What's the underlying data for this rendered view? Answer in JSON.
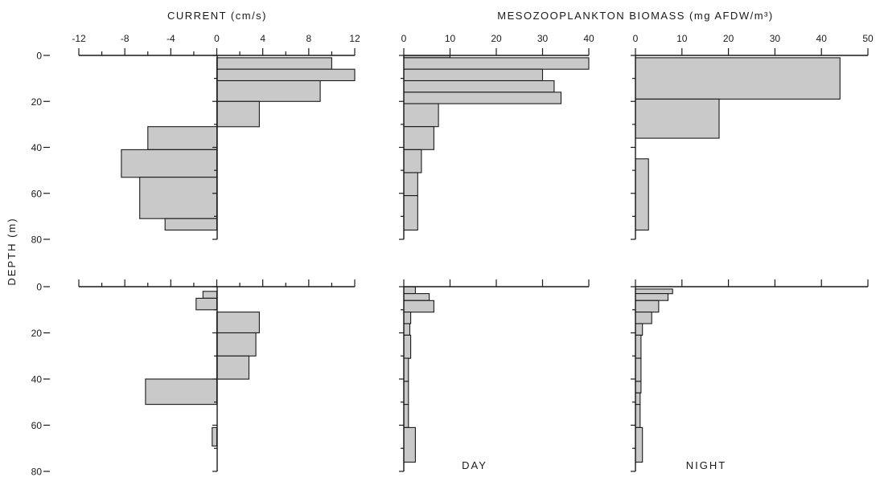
{
  "figure": {
    "header_current": "CURRENT (cm/s)",
    "header_biomass": "MESOZOOPLANKTON BIOMASS (mg AFDW/m³)",
    "y_axis_label": "DEPTH (m)",
    "label_day": "DAY",
    "label_night": "NIGHT"
  },
  "chart_data": [
    {
      "type": "bar",
      "orientation": "horizontal",
      "xlabel": "CURRENT (cm/s)",
      "ylabel": "DEPTH (m)",
      "xlim": [
        -12,
        12
      ],
      "xticks": [
        -12,
        -8,
        -4,
        0,
        4,
        8,
        12
      ],
      "ylim": [
        0,
        80
      ],
      "yticks": [
        0,
        20,
        40,
        60,
        80
      ],
      "bars": [
        {
          "depth": [
            1,
            6
          ],
          "value": 10
        },
        {
          "depth": [
            6,
            11
          ],
          "value": 12
        },
        {
          "depth": [
            11,
            20
          ],
          "value": 9
        },
        {
          "depth": [
            20,
            31
          ],
          "value": 3.7
        },
        {
          "depth": [
            31,
            41
          ],
          "value": -6
        },
        {
          "depth": [
            41,
            53
          ],
          "value": -8.3
        },
        {
          "depth": [
            53,
            71
          ],
          "value": -6.7
        },
        {
          "depth": [
            71,
            76
          ],
          "value": -4.5
        }
      ]
    },
    {
      "type": "bar",
      "orientation": "horizontal",
      "xlabel": "MESOZOOPLANKTON BIOMASS (mg AFDW/m³)",
      "ylabel": "DEPTH (m)",
      "xlim": [
        0,
        40
      ],
      "xticks": [
        0,
        10,
        20,
        30,
        40
      ],
      "ylim": [
        0,
        80
      ],
      "yticks": [
        0,
        20,
        40,
        60,
        80
      ],
      "bars": [
        {
          "depth": [
            0,
            1
          ],
          "value": 10
        },
        {
          "depth": [
            1,
            6
          ],
          "value": 40
        },
        {
          "depth": [
            6,
            11
          ],
          "value": 30
        },
        {
          "depth": [
            11,
            16
          ],
          "value": 32.5
        },
        {
          "depth": [
            16,
            21
          ],
          "value": 34
        },
        {
          "depth": [
            21,
            31
          ],
          "value": 7.5
        },
        {
          "depth": [
            31,
            41
          ],
          "value": 6.5
        },
        {
          "depth": [
            41,
            51
          ],
          "value": 3.8
        },
        {
          "depth": [
            51,
            61
          ],
          "value": 3
        },
        {
          "depth": [
            61,
            76
          ],
          "value": 3
        }
      ]
    },
    {
      "type": "bar",
      "orientation": "horizontal",
      "xlabel": "MESOZOOPLANKTON BIOMASS (mg AFDW/m³)",
      "ylabel": "DEPTH (m)",
      "xlim": [
        0,
        50
      ],
      "xticks": [
        0,
        10,
        20,
        30,
        40,
        50
      ],
      "ylim": [
        0,
        80
      ],
      "yticks": [
        0,
        20,
        40,
        60,
        80
      ],
      "bars": [
        {
          "depth": [
            1,
            19
          ],
          "value": 44
        },
        {
          "depth": [
            19,
            36
          ],
          "value": 18
        },
        {
          "depth": [
            45,
            76
          ],
          "value": 2.8
        }
      ]
    },
    {
      "type": "bar",
      "orientation": "horizontal",
      "xlabel": "CURRENT (cm/s)",
      "ylabel": "DEPTH (m)",
      "xlim": [
        -12,
        12
      ],
      "xticks": [
        -12,
        -8,
        -4,
        0,
        4,
        8,
        12
      ],
      "ylim": [
        0,
        80
      ],
      "yticks": [
        0,
        20,
        40,
        60,
        80
      ],
      "bars": [
        {
          "depth": [
            2,
            5
          ],
          "value": -1.2
        },
        {
          "depth": [
            5,
            10
          ],
          "value": -1.8
        },
        {
          "depth": [
            11,
            20
          ],
          "value": 3.7
        },
        {
          "depth": [
            20,
            30
          ],
          "value": 3.4
        },
        {
          "depth": [
            30,
            40
          ],
          "value": 2.8
        },
        {
          "depth": [
            40,
            51
          ],
          "value": -6.2
        },
        {
          "depth": [
            61,
            69
          ],
          "value": -0.4
        }
      ]
    },
    {
      "type": "bar",
      "orientation": "horizontal",
      "xlabel": "MESOZOOPLANKTON BIOMASS (mg AFDW/m³)",
      "ylabel": "DEPTH (m)",
      "xlim": [
        0,
        40
      ],
      "xticks": [
        0,
        10,
        20,
        30,
        40
      ],
      "ylim": [
        0,
        80
      ],
      "yticks": [
        0,
        20,
        40,
        60,
        80
      ],
      "label": "DAY",
      "bars": [
        {
          "depth": [
            0,
            3
          ],
          "value": 2.5
        },
        {
          "depth": [
            3,
            6
          ],
          "value": 5.5
        },
        {
          "depth": [
            6,
            11
          ],
          "value": 6.5
        },
        {
          "depth": [
            11,
            16
          ],
          "value": 1.5
        },
        {
          "depth": [
            16,
            21
          ],
          "value": 1.3
        },
        {
          "depth": [
            21,
            31
          ],
          "value": 1.5
        },
        {
          "depth": [
            31,
            41
          ],
          "value": 1
        },
        {
          "depth": [
            41,
            51
          ],
          "value": 1
        },
        {
          "depth": [
            51,
            61
          ],
          "value": 1
        },
        {
          "depth": [
            61,
            76
          ],
          "value": 2.5
        }
      ]
    },
    {
      "type": "bar",
      "orientation": "horizontal",
      "xlabel": "MESOZOOPLANKTON BIOMASS (mg AFDW/m³)",
      "ylabel": "DEPTH (m)",
      "xlim": [
        0,
        50
      ],
      "xticks": [
        0,
        10,
        20,
        30,
        40,
        50
      ],
      "ylim": [
        0,
        80
      ],
      "yticks": [
        0,
        20,
        40,
        60,
        80
      ],
      "label": "NIGHT",
      "bars": [
        {
          "depth": [
            1,
            3
          ],
          "value": 8
        },
        {
          "depth": [
            3,
            6
          ],
          "value": 7
        },
        {
          "depth": [
            6,
            11
          ],
          "value": 5
        },
        {
          "depth": [
            11,
            16
          ],
          "value": 3.5
        },
        {
          "depth": [
            16,
            21
          ],
          "value": 1.5
        },
        {
          "depth": [
            21,
            31
          ],
          "value": 1.2
        },
        {
          "depth": [
            31,
            41
          ],
          "value": 1.2
        },
        {
          "depth": [
            41,
            46
          ],
          "value": 1.2
        },
        {
          "depth": [
            46,
            51
          ],
          "value": 1
        },
        {
          "depth": [
            51,
            61
          ],
          "value": 1
        },
        {
          "depth": [
            61,
            76
          ],
          "value": 1.5
        }
      ]
    }
  ]
}
